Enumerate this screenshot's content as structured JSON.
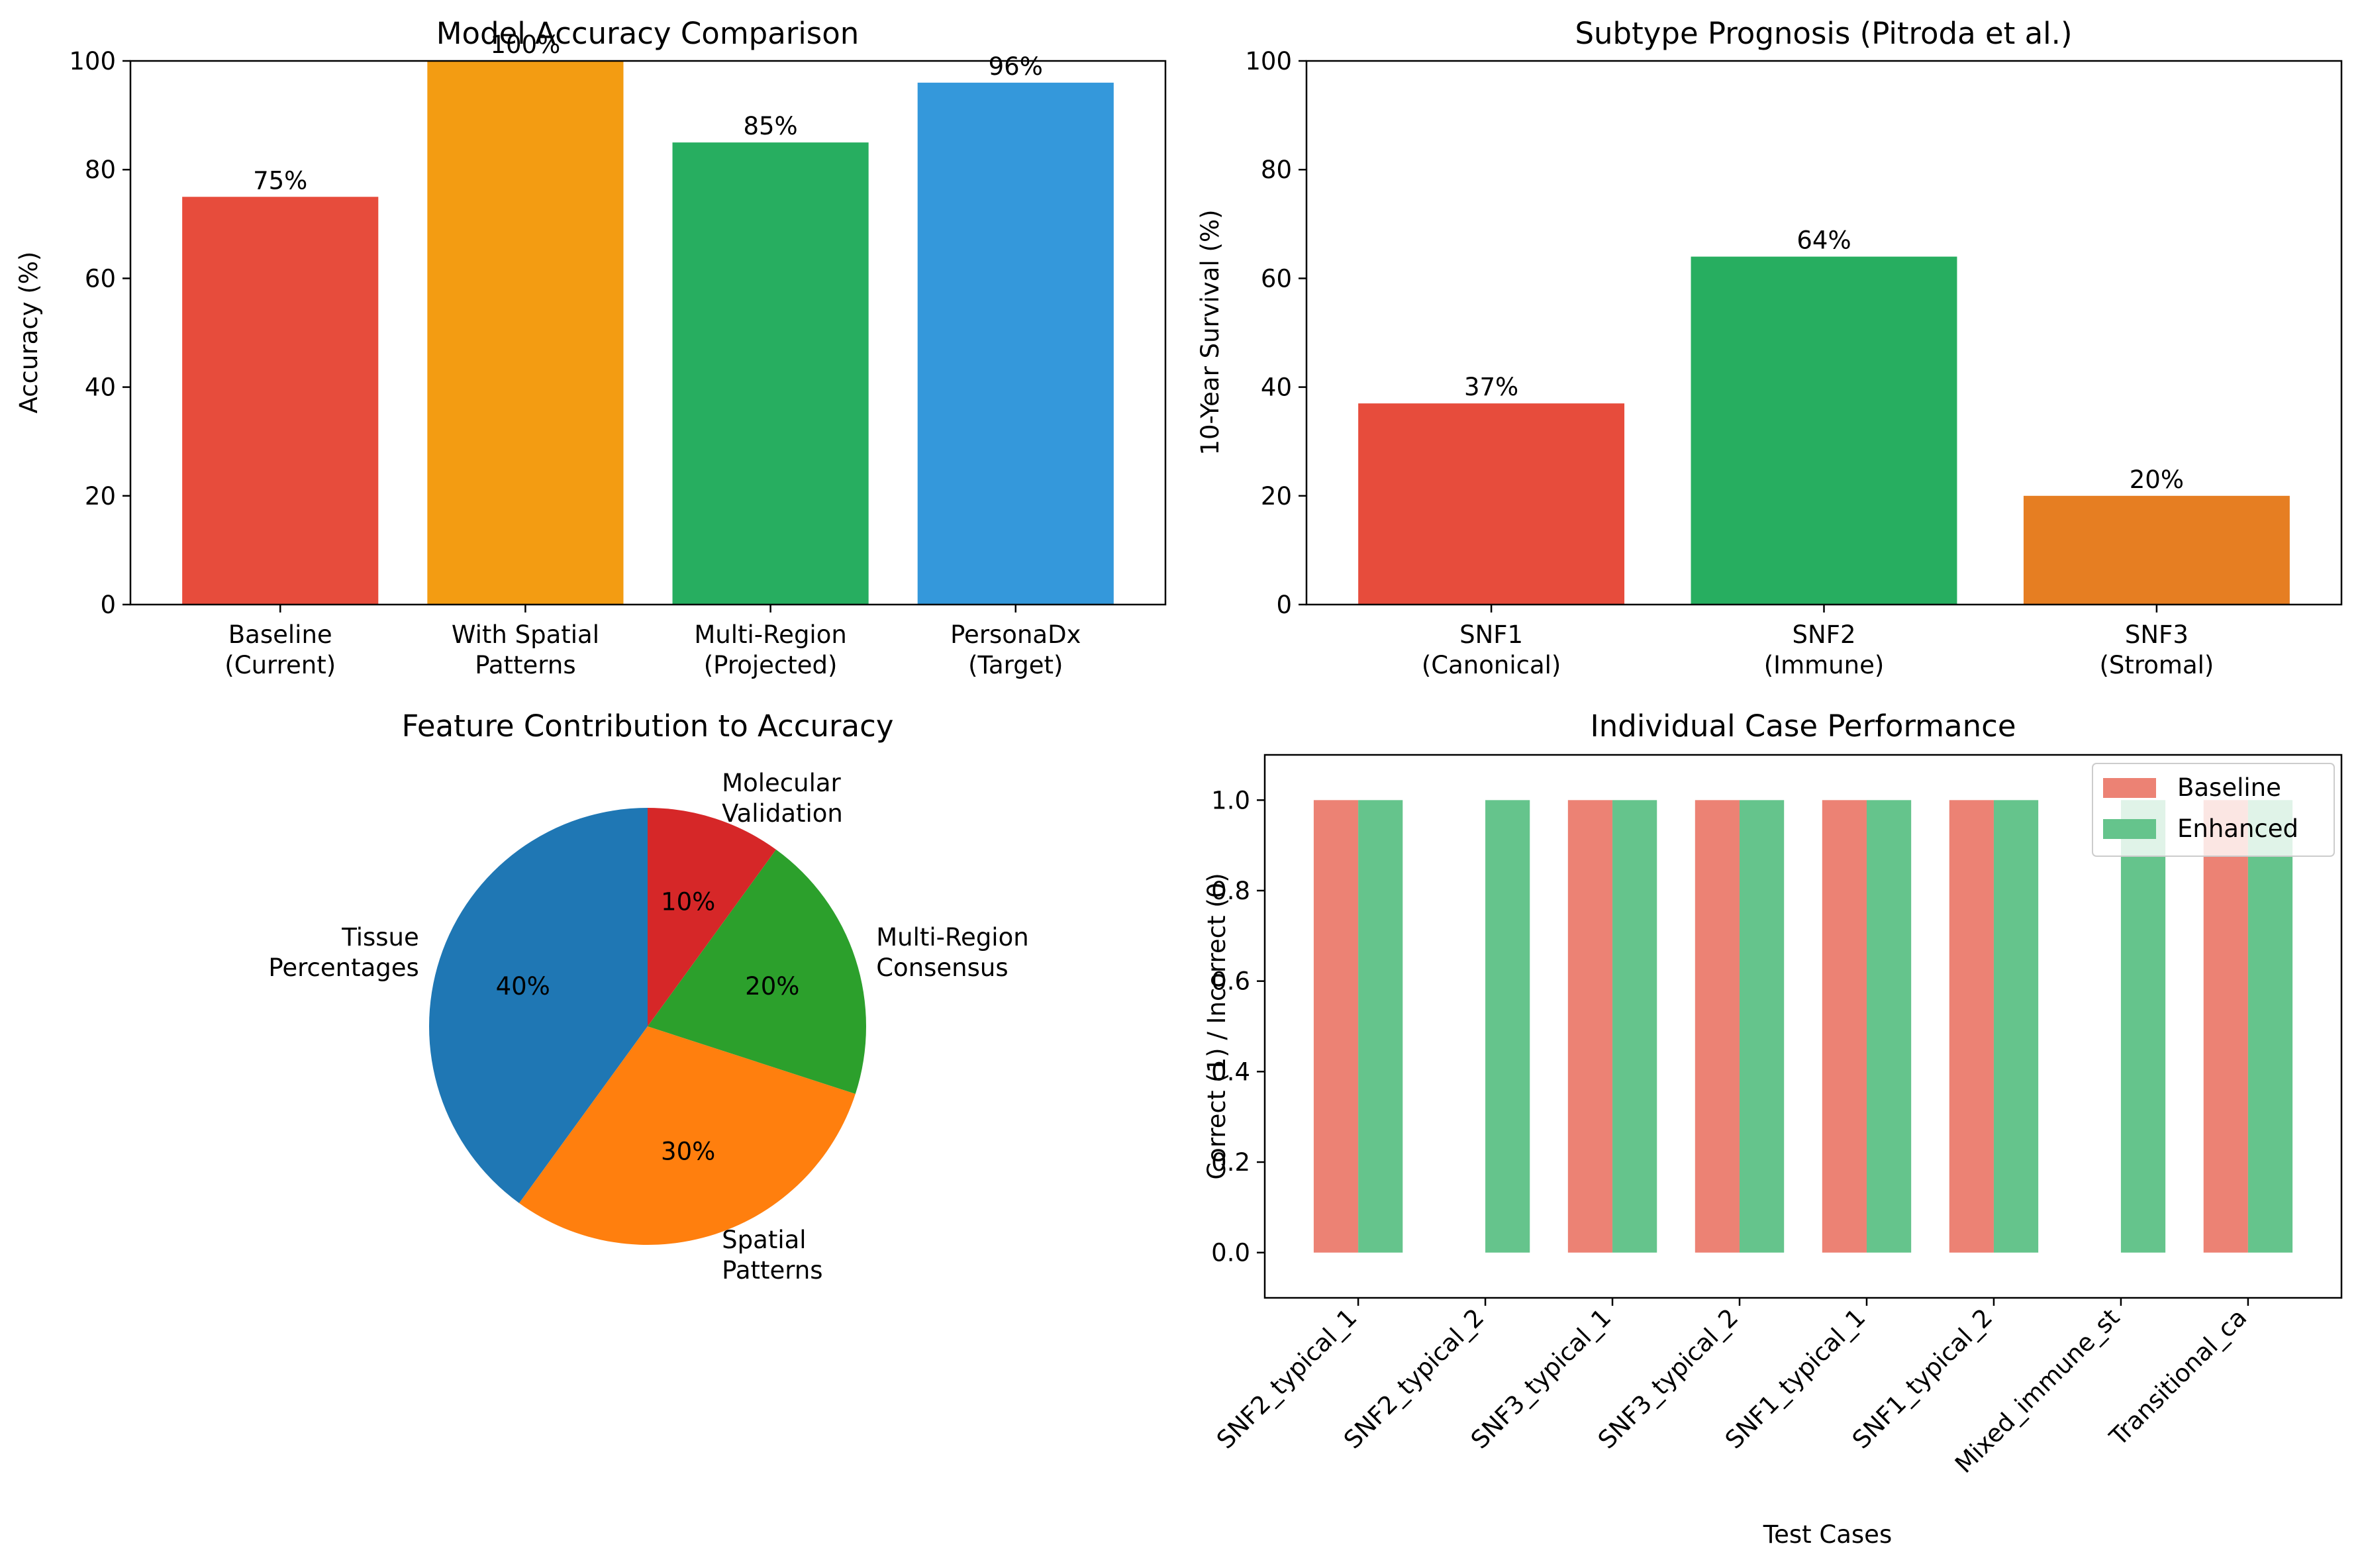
{
  "chart_data": [
    {
      "type": "bar",
      "title": "Model Accuracy Comparison",
      "xlabel": "",
      "ylabel": "Accuracy (%)",
      "ylim": [
        0,
        100
      ],
      "yticks": [
        0,
        20,
        40,
        60,
        80,
        100
      ],
      "categories": [
        [
          "Baseline",
          "(Current)"
        ],
        [
          "With Spatial",
          "Patterns"
        ],
        [
          "Multi-Region",
          "(Projected)"
        ],
        [
          "PersonaDx",
          "(Target)"
        ]
      ],
      "values": [
        75,
        100,
        85,
        96
      ],
      "labels": [
        "75%",
        "100%",
        "85%",
        "96%"
      ],
      "colors": [
        "#e74c3c",
        "#f39c12",
        "#27ae60",
        "#3498db"
      ],
      "grid": false
    },
    {
      "type": "bar",
      "title": "Subtype Prognosis (Pitroda et al.)",
      "xlabel": "",
      "ylabel": "10-Year Survival (%)",
      "ylim": [
        0,
        100
      ],
      "yticks": [
        0,
        20,
        40,
        60,
        80,
        100
      ],
      "categories": [
        [
          "SNF1",
          "(Canonical)"
        ],
        [
          "SNF2",
          "(Immune)"
        ],
        [
          "SNF3",
          "(Stromal)"
        ]
      ],
      "values": [
        37,
        64,
        20
      ],
      "labels": [
        "37%",
        "64%",
        "20%"
      ],
      "colors": [
        "#e74c3c",
        "#27ae60",
        "#e67e22"
      ],
      "grid": false
    },
    {
      "type": "pie",
      "title": "Feature Contribution to Accuracy",
      "slices": [
        {
          "label": [
            "Tissue",
            "Percentages"
          ],
          "value": 40,
          "pct": "40%",
          "color": "#1f77b4"
        },
        {
          "label": [
            "Spatial",
            "Patterns"
          ],
          "value": 30,
          "pct": "30%",
          "color": "#ff7f0e"
        },
        {
          "label": [
            "Multi-Region",
            "Consensus"
          ],
          "value": 20,
          "pct": "20%",
          "color": "#2ca02c"
        },
        {
          "label": [
            "Molecular",
            "Validation"
          ],
          "value": 10,
          "pct": "10%",
          "color": "#d62728"
        }
      ],
      "start_angle": 90,
      "direction": "counterclockwise"
    },
    {
      "type": "bar",
      "title": "Individual Case Performance",
      "xlabel": "Test Cases",
      "ylabel": "Correct (1) / Incorrect (0)",
      "ylim": [
        -0.1,
        1.1
      ],
      "yticks": [
        "0.0",
        "0.2",
        "0.4",
        "0.6",
        "0.8",
        "1.0"
      ],
      "categories": [
        "SNF2_typical_1",
        "SNF2_typical_2",
        "SNF3_typical_1",
        "SNF3_typical_2",
        "SNF1_typical_1",
        "SNF1_typical_2",
        "Mixed_immune_st",
        "Transitional_ca"
      ],
      "series": [
        {
          "name": "Baseline",
          "values": [
            1,
            0,
            1,
            1,
            1,
            1,
            0,
            1
          ],
          "color": "#ec8274"
        },
        {
          "name": "Enhanced",
          "values": [
            1,
            1,
            1,
            1,
            1,
            1,
            1,
            1
          ],
          "color": "#65c48c"
        }
      ],
      "legend": "top-right",
      "grid": false
    }
  ]
}
